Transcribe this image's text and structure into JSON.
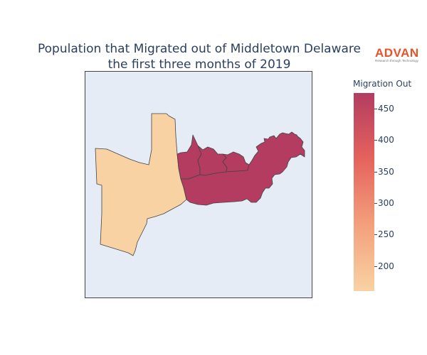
{
  "title_lines": [
    "Population that Migrated out of Middletown Delaware",
    "the first three months of 2019"
  ],
  "logo": {
    "word": "ADVAN",
    "tagline": "Research through Technology",
    "color": "#e8532a"
  },
  "colorbar": {
    "title": "Migration Out",
    "min": 160,
    "max": 475,
    "ticks": [
      {
        "value": 450,
        "label": "450"
      },
      {
        "value": 400,
        "label": "400"
      },
      {
        "value": 350,
        "label": "350"
      },
      {
        "value": 300,
        "label": "300"
      },
      {
        "value": 250,
        "label": "250"
      },
      {
        "value": 200,
        "label": "200"
      }
    ],
    "colorscale": [
      "#f9d2a3",
      "#f3a07c",
      "#e5635d",
      "#b33c60"
    ]
  },
  "map": {
    "background": "#e5ecf6",
    "regions": [
      {
        "id": "west",
        "value": 160
      },
      {
        "id": "northeast-a",
        "value": 475
      },
      {
        "id": "northeast-b",
        "value": 475
      },
      {
        "id": "northeast-c",
        "value": 475
      },
      {
        "id": "east",
        "value": 475
      }
    ]
  }
}
